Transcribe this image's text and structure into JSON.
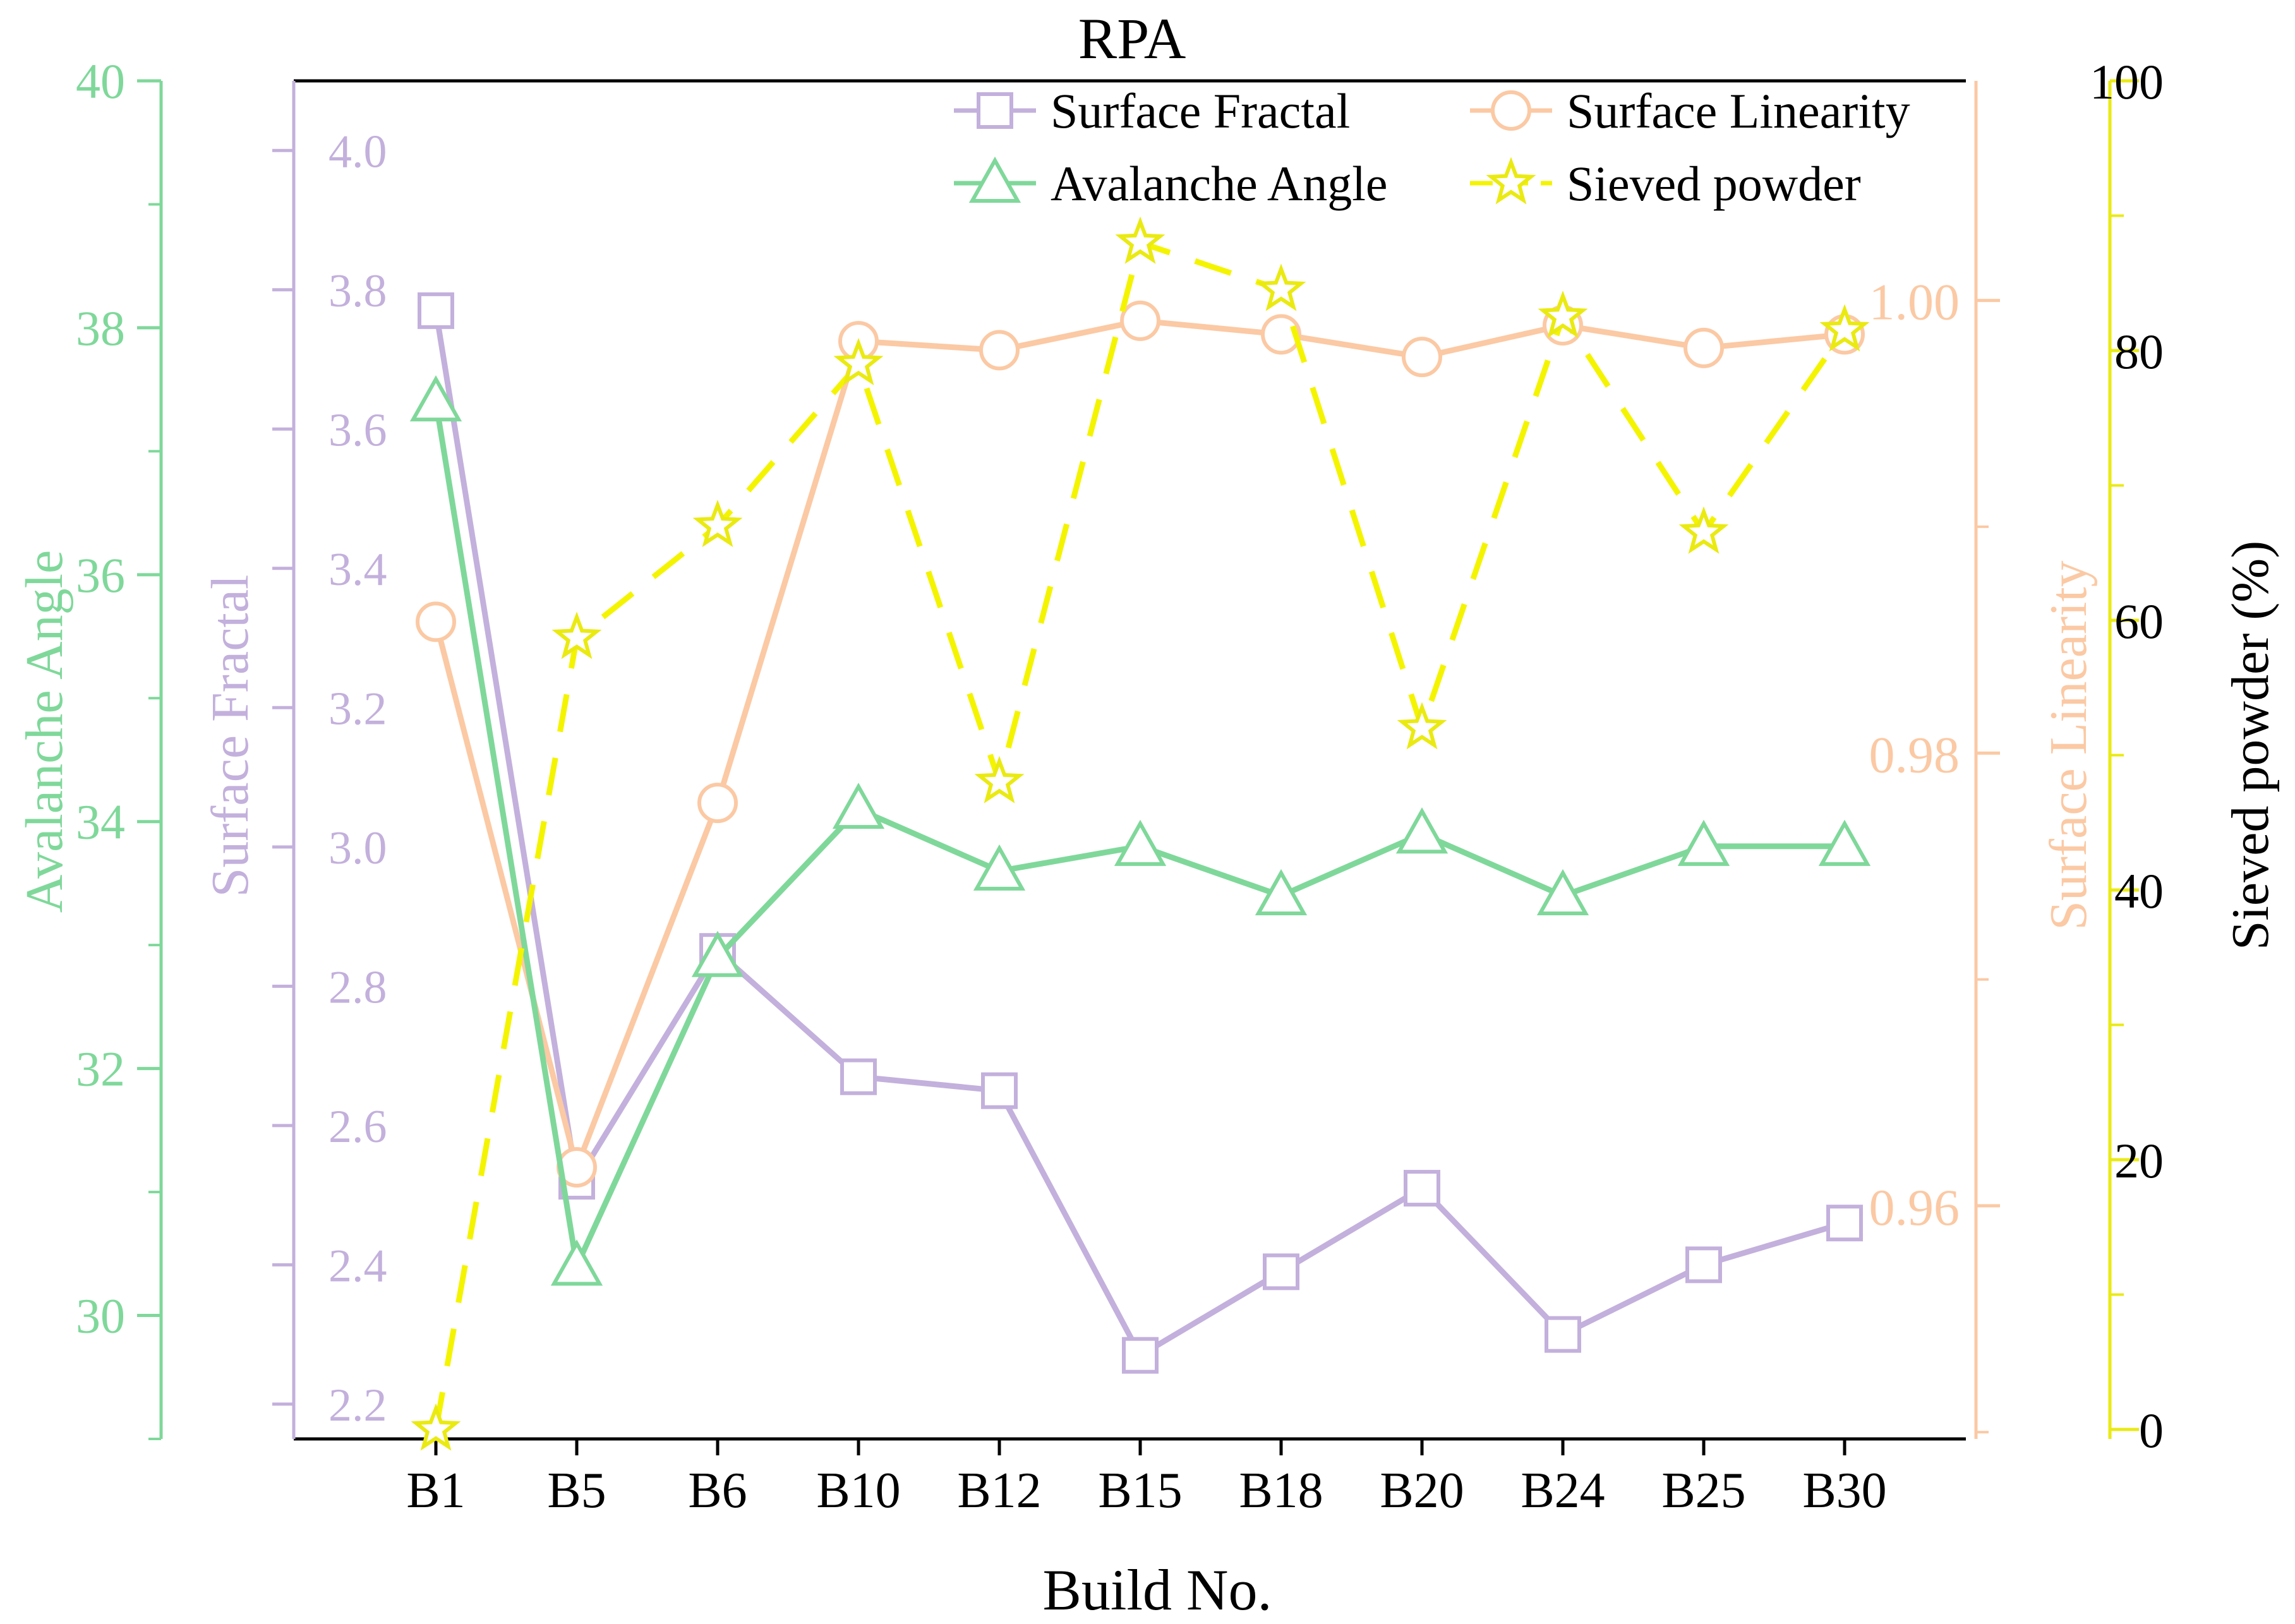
{
  "chart_data": {
    "type": "line",
    "title": "RPA",
    "xlabel": "Build No.",
    "categories": [
      "B1",
      "B5",
      "B6",
      "B10",
      "B12",
      "B15",
      "B18",
      "B20",
      "B24",
      "B25",
      "B30"
    ],
    "axes": {
      "avalanche": {
        "label": "Avalanche Angle",
        "color": "#7fd89a",
        "ylim": [
          29,
          40
        ],
        "ticks": [
          30,
          32,
          34,
          36,
          38,
          40
        ],
        "tick_labels": [
          "30",
          "32",
          "34",
          "36",
          "38",
          "40"
        ],
        "minor_step": 1
      },
      "fractal": {
        "label": "Surface Fractal",
        "color": "#c3b0dc",
        "ylim": [
          2.15,
          4.1
        ],
        "ticks": [
          2.2,
          2.4,
          2.6,
          2.8,
          3.0,
          3.2,
          3.4,
          3.6,
          3.8,
          4.0
        ],
        "tick_labels": [
          "2.2",
          "2.4",
          "2.6",
          "2.8",
          "3.0",
          "3.2",
          "3.4",
          "3.6",
          "3.8",
          "4.0"
        ]
      },
      "linearity": {
        "label": "Surface Linearity",
        "color": "#fbc9a4",
        "ylim": [
          0.9497,
          1.0097
        ],
        "ticks": [
          0.96,
          0.98,
          1.0
        ],
        "tick_labels": [
          "0.96",
          "0.98",
          "1.00"
        ],
        "minor_step": 0.01
      },
      "sieved": {
        "label": "Sieved powder (%)",
        "color": "#eaea12",
        "ylim": [
          -0.7,
          100
        ],
        "ticks": [
          0,
          20,
          40,
          60,
          80,
          100
        ],
        "tick_labels": [
          "0",
          "20",
          "40",
          "60",
          "80",
          "100"
        ],
        "minor_step": 10
      }
    },
    "series": [
      {
        "name": "Surface Fractal",
        "axis": "fractal",
        "marker": "square",
        "color": "#c3b0dc",
        "line_color": "#c3b0dc",
        "dash": "",
        "values": [
          3.77,
          2.52,
          2.85,
          2.67,
          2.65,
          2.27,
          2.39,
          2.51,
          2.3,
          2.4,
          2.46
        ]
      },
      {
        "name": "Surface Linearity",
        "axis": "linearity",
        "marker": "circle",
        "color": "#fbc9a4",
        "line_color": "#fbc9a4",
        "dash": "",
        "values": [
          0.9858,
          0.9617,
          0.9778,
          0.9982,
          0.9978,
          0.9991,
          0.9985,
          0.9975,
          0.9989,
          0.9979,
          0.9985
        ]
      },
      {
        "name": "Avalanche Angle",
        "axis": "avalanche",
        "marker": "triangle",
        "color": "#7fd89a",
        "line_color": "#7fd89a",
        "dash": "",
        "values": [
          37.4,
          30.4,
          32.9,
          34.1,
          33.6,
          33.8,
          33.4,
          33.9,
          33.4,
          33.8,
          33.8
        ]
      },
      {
        "name": "Sieved powder",
        "axis": "sieved",
        "marker": "star",
        "color": "#eaea12",
        "line_color": "#f4f400",
        "dash": "60 42",
        "values": [
          0,
          58.7,
          67.0,
          79.0,
          48.0,
          88.0,
          84.5,
          52.0,
          82.5,
          66.5,
          81.5
        ]
      }
    ],
    "legend": {
      "position": "top-right",
      "order": [
        "Surface Fractal",
        "Surface Linearity",
        "Avalanche Angle",
        "Sieved powder"
      ]
    }
  }
}
